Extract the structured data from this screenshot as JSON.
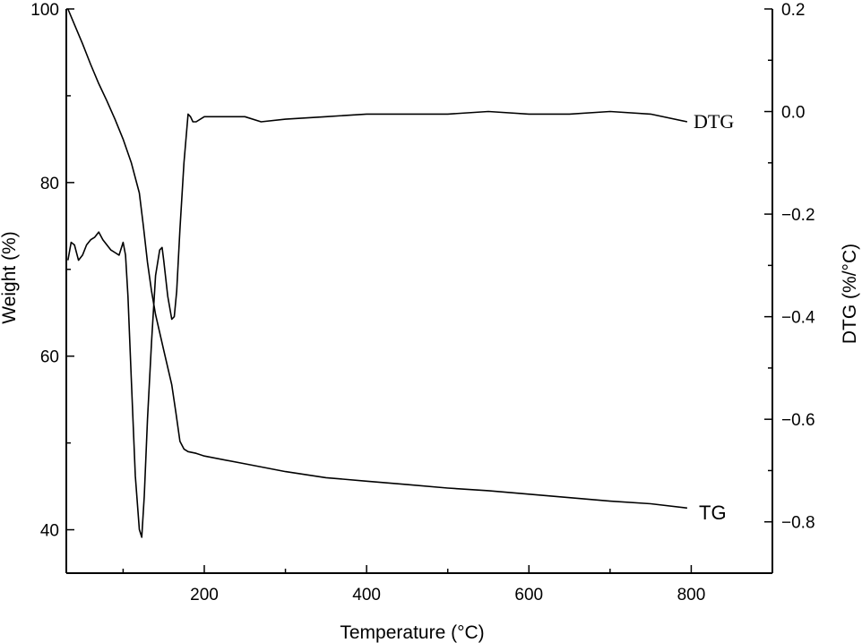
{
  "chart_data": {
    "type": "line",
    "xlabel": "Temperature (°C)",
    "ylabel_left": "Weight (%)",
    "ylabel_right": "DTG (%/°C)",
    "xlim": [
      30,
      900
    ],
    "ylim_left": [
      35,
      100
    ],
    "ylim_right": [
      -0.9,
      0.2
    ],
    "x_ticks": [
      200,
      400,
      600,
      800
    ],
    "y_left_ticks": [
      40,
      60,
      80,
      100
    ],
    "y_right_ticks": [
      "0.2",
      "0.0",
      "−0.2",
      "−0.4",
      "−0.6",
      "−0.8"
    ],
    "y_right_tick_values": [
      0.2,
      0.0,
      -0.2,
      -0.4,
      -0.6,
      -0.8
    ],
    "grid": false,
    "series": [
      {
        "name": "TG",
        "axis": "left",
        "x": [
          32,
          40,
          50,
          60,
          70,
          80,
          90,
          100,
          110,
          120,
          125,
          130,
          135,
          140,
          150,
          160,
          165,
          170,
          175,
          180,
          190,
          200,
          250,
          300,
          350,
          400,
          450,
          500,
          550,
          600,
          650,
          700,
          750,
          795
        ],
        "y": [
          100,
          98.2,
          96.0,
          93.6,
          91.4,
          89.4,
          87.3,
          85.0,
          82.3,
          78.8,
          75.0,
          70.8,
          67.5,
          64.8,
          60.7,
          56.7,
          53.5,
          50.2,
          49.3,
          49.0,
          48.8,
          48.5,
          47.6,
          46.7,
          46.0,
          45.6,
          45.2,
          44.8,
          44.5,
          44.1,
          43.7,
          43.3,
          43.0,
          42.5
        ]
      },
      {
        "name": "DTG",
        "axis": "right",
        "x": [
          32,
          36,
          40,
          45,
          50,
          55,
          60,
          65,
          70,
          75,
          80,
          85,
          90,
          95,
          100,
          103,
          106,
          110,
          115,
          120,
          123,
          126,
          130,
          135,
          140,
          145,
          148,
          150,
          155,
          160,
          163,
          166,
          170,
          175,
          180,
          183,
          186,
          190,
          200,
          220,
          250,
          270,
          300,
          350,
          400,
          450,
          500,
          550,
          600,
          650,
          700,
          750,
          795
        ],
        "y": [
          -0.29,
          -0.255,
          -0.26,
          -0.29,
          -0.28,
          -0.26,
          -0.25,
          -0.245,
          -0.235,
          -0.25,
          -0.26,
          -0.27,
          -0.275,
          -0.28,
          -0.255,
          -0.28,
          -0.36,
          -0.52,
          -0.71,
          -0.815,
          -0.83,
          -0.75,
          -0.6,
          -0.45,
          -0.32,
          -0.27,
          -0.265,
          -0.29,
          -0.36,
          -0.405,
          -0.4,
          -0.35,
          -0.23,
          -0.1,
          -0.005,
          -0.01,
          -0.02,
          -0.02,
          -0.01,
          -0.01,
          -0.01,
          -0.02,
          -0.015,
          -0.01,
          -0.005,
          -0.005,
          -0.005,
          -0.0,
          -0.005,
          -0.005,
          -0.0,
          -0.005,
          -0.02
        ]
      }
    ],
    "annotations": [
      {
        "text": "TG",
        "series": "TG"
      },
      {
        "text": "DTG",
        "series": "DTG"
      }
    ]
  }
}
